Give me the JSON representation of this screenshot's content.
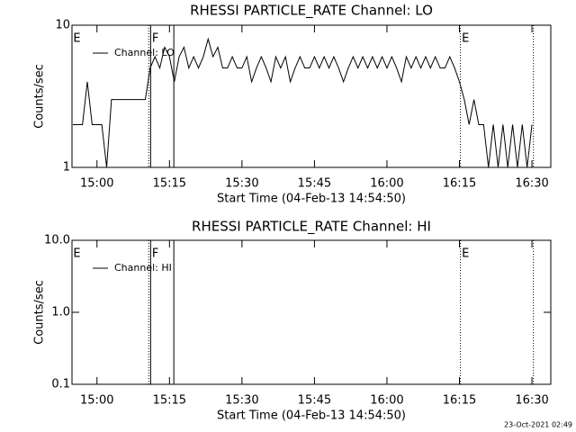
{
  "chart_data": [
    {
      "type": "line",
      "title": "RHESSI PARTICLE_RATE Channel: LO",
      "xlabel": "Start Time (04-Feb-13 14:54:50)",
      "ylabel": "Counts/sec",
      "log_y": true,
      "legend": "upper left",
      "xlim": [
        894.83,
        993.9
      ],
      "ylim": [
        1,
        10
      ],
      "xticks": [
        {
          "value": 900,
          "label": "15:00"
        },
        {
          "value": 915,
          "label": "15:15"
        },
        {
          "value": 930,
          "label": "15:30"
        },
        {
          "value": 945,
          "label": "15:45"
        },
        {
          "value": 960,
          "label": "16:00"
        },
        {
          "value": 975,
          "label": "16:15"
        },
        {
          "value": 990,
          "label": "16:30"
        }
      ],
      "yticks": [
        1,
        10
      ],
      "x": [
        895,
        896,
        897,
        898,
        899,
        900,
        901,
        902,
        903,
        904,
        905,
        906,
        907,
        908,
        909,
        910,
        911,
        912,
        913,
        914,
        915,
        916,
        917,
        918,
        919,
        920,
        921,
        922,
        923,
        924,
        925,
        926,
        927,
        928,
        929,
        930,
        931,
        932,
        933,
        934,
        935,
        936,
        937,
        938,
        939,
        940,
        941,
        942,
        943,
        944,
        945,
        946,
        947,
        948,
        949,
        950,
        951,
        952,
        953,
        954,
        955,
        956,
        957,
        958,
        959,
        960,
        961,
        962,
        963,
        964,
        965,
        966,
        967,
        968,
        969,
        970,
        971,
        972,
        973,
        974,
        975,
        976,
        977,
        978,
        979,
        980,
        981,
        982,
        983,
        984,
        985,
        986,
        987,
        988,
        989,
        990
      ],
      "series": [
        {
          "name": "Channel: LO",
          "color": "#000000",
          "values": [
            2,
            2,
            2,
            4,
            2,
            2,
            2,
            1,
            3,
            3,
            3,
            3,
            3,
            3,
            3,
            3,
            5,
            6,
            5,
            7,
            6,
            4,
            6,
            7,
            5,
            6,
            5,
            6,
            8,
            6,
            7,
            5,
            5,
            6,
            5,
            5,
            6,
            4,
            5,
            6,
            5,
            4,
            6,
            5,
            6,
            4,
            5,
            6,
            5,
            5,
            6,
            5,
            6,
            5,
            6,
            5,
            4,
            5,
            6,
            5,
            6,
            5,
            6,
            5,
            6,
            5,
            6,
            5,
            4,
            6,
            5,
            6,
            5,
            6,
            5,
            6,
            5,
            5,
            6,
            5,
            4,
            3,
            2,
            3,
            2,
            2,
            1,
            2,
            1,
            2,
            1,
            2,
            1,
            2,
            1,
            2
          ]
        }
      ],
      "markers": [
        {
          "x": 910.7,
          "style": "dotted"
        },
        {
          "x": 911.1,
          "style": "solid"
        },
        {
          "x": 915.9,
          "style": "solid"
        },
        {
          "x": 975.2,
          "style": "dotted"
        },
        {
          "x": 990.3,
          "style": "dotted"
        }
      ],
      "annotations": [
        {
          "x": 894.9,
          "text": "E"
        },
        {
          "x": 911.2,
          "text": "F"
        },
        {
          "x": 975.3,
          "text": "E"
        }
      ]
    },
    {
      "type": "line",
      "title": "RHESSI PARTICLE_RATE Channel: HI",
      "xlabel": "Start Time (04-Feb-13 14:54:50)",
      "ylabel": "Counts/sec",
      "log_y": true,
      "legend": "upper left",
      "xlim": [
        894.83,
        993.9
      ],
      "ylim": [
        0.1,
        10
      ],
      "xticks": [
        {
          "value": 900,
          "label": "15:00"
        },
        {
          "value": 915,
          "label": "15:15"
        },
        {
          "value": 930,
          "label": "15:30"
        },
        {
          "value": 945,
          "label": "15:45"
        },
        {
          "value": 960,
          "label": "16:00"
        },
        {
          "value": 975,
          "label": "16:15"
        },
        {
          "value": 990,
          "label": "16:30"
        }
      ],
      "yticks": [
        {
          "value": 10,
          "label": "10.0"
        },
        {
          "value": 1,
          "label": "1.0"
        },
        0.1
      ],
      "x": [],
      "series": [
        {
          "name": "Channel: HI",
          "color": "#000000",
          "values": []
        }
      ],
      "markers": [
        {
          "x": 910.7,
          "style": "dotted"
        },
        {
          "x": 911.1,
          "style": "solid"
        },
        {
          "x": 915.9,
          "style": "solid"
        },
        {
          "x": 975.2,
          "style": "dotted"
        },
        {
          "x": 990.3,
          "style": "dotted"
        }
      ],
      "annotations": [
        {
          "x": 894.9,
          "text": "E"
        },
        {
          "x": 911.2,
          "text": "F"
        },
        {
          "x": 975.3,
          "text": "E"
        }
      ]
    }
  ],
  "footer": "23-Oct-2021 02:49"
}
